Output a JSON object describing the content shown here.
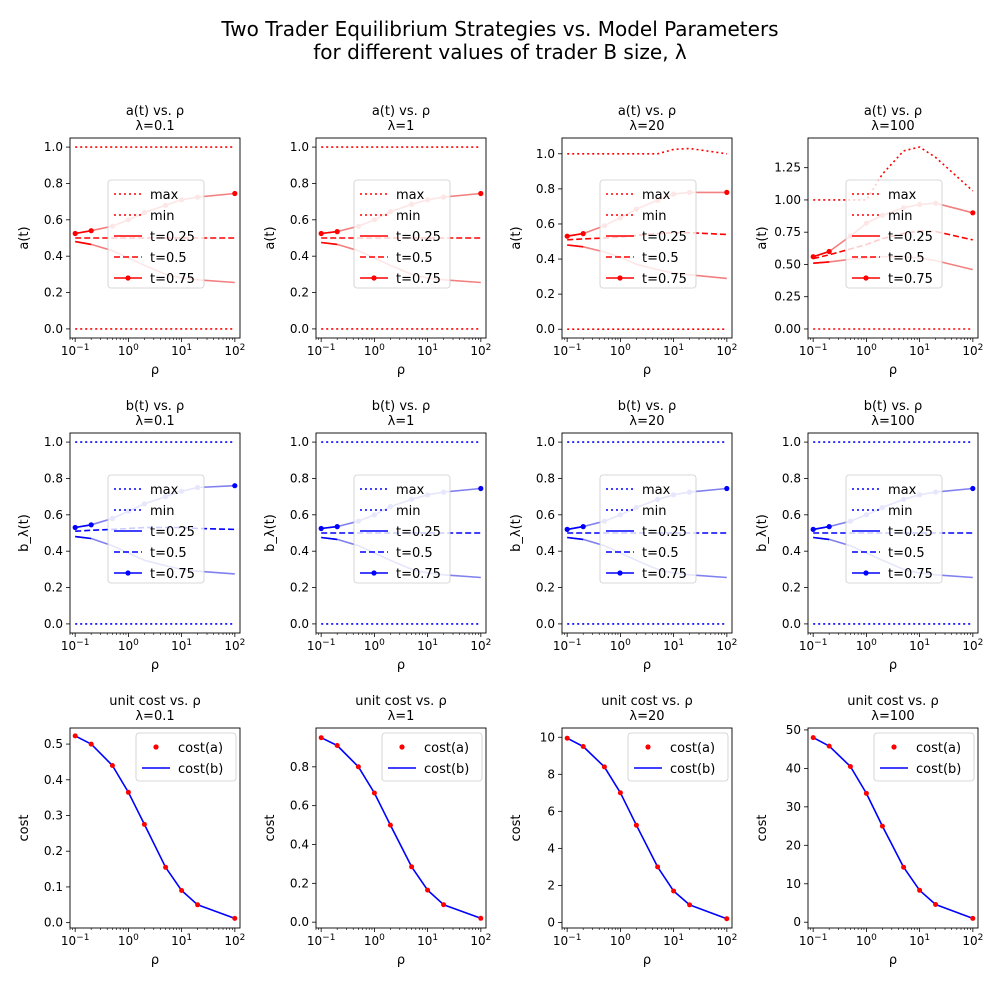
{
  "figure": {
    "title_line1": "Two Trader Equilibrium Strategies vs. Model Parameters",
    "title_line2": "for different values of trader B size, λ"
  },
  "chart_data": [
    {
      "type": "line",
      "row": "a",
      "title_line1": "a(t) vs. ρ",
      "title_line2": "λ=0.1",
      "xlabel": "ρ",
      "ylabel": "a(t)",
      "xscale": "log",
      "xlim": [
        0.08,
        125
      ],
      "ylim": [
        -0.05,
        1.05
      ],
      "yticks": [
        0.0,
        0.2,
        0.4,
        0.6,
        0.8,
        1.0
      ],
      "color": "#ff0000",
      "light_color": "#f28080",
      "legend": [
        "max",
        "min",
        "t=0.25",
        "t=0.5",
        "t=0.75"
      ],
      "x": [
        0.1,
        0.2,
        0.5,
        1,
        2,
        5,
        10,
        20,
        100
      ],
      "max": [
        1,
        1,
        1,
        1,
        1,
        1,
        1,
        1,
        1
      ],
      "min": [
        0,
        0,
        0,
        0,
        0,
        0,
        0,
        0,
        0
      ],
      "t025": [
        0.48,
        0.465,
        0.43,
        0.39,
        0.35,
        0.3,
        0.28,
        0.27,
        0.255
      ],
      "t05": [
        0.5,
        0.5,
        0.5,
        0.5,
        0.5,
        0.5,
        0.5,
        0.5,
        0.5
      ],
      "t075": [
        0.525,
        0.54,
        0.565,
        0.6,
        0.64,
        0.68,
        0.71,
        0.725,
        0.745
      ]
    },
    {
      "type": "line",
      "row": "a",
      "title_line1": "a(t) vs. ρ",
      "title_line2": "λ=1",
      "xlabel": "ρ",
      "ylabel": "a(t)",
      "xscale": "log",
      "xlim": [
        0.08,
        125
      ],
      "ylim": [
        -0.05,
        1.05
      ],
      "yticks": [
        0.0,
        0.2,
        0.4,
        0.6,
        0.8,
        1.0
      ],
      "color": "#ff0000",
      "light_color": "#f28080",
      "legend": [
        "max",
        "min",
        "t=0.25",
        "t=0.5",
        "t=0.75"
      ],
      "x": [
        0.1,
        0.2,
        0.5,
        1,
        2,
        5,
        10,
        20,
        100
      ],
      "max": [
        1,
        1,
        1,
        1,
        1,
        1,
        1,
        1,
        1
      ],
      "min": [
        0,
        0,
        0,
        0,
        0,
        0,
        0,
        0,
        0
      ],
      "t025": [
        0.475,
        0.465,
        0.43,
        0.39,
        0.35,
        0.3,
        0.28,
        0.27,
        0.255
      ],
      "t05": [
        0.5,
        0.5,
        0.5,
        0.5,
        0.5,
        0.5,
        0.5,
        0.5,
        0.5
      ],
      "t075": [
        0.525,
        0.535,
        0.565,
        0.6,
        0.645,
        0.685,
        0.71,
        0.725,
        0.745
      ]
    },
    {
      "type": "line",
      "row": "a",
      "title_line1": "a(t) vs. ρ",
      "title_line2": "λ=20",
      "xlabel": "ρ",
      "ylabel": "a(t)",
      "xscale": "log",
      "xlim": [
        0.08,
        125
      ],
      "ylim": [
        -0.05,
        1.09
      ],
      "yticks": [
        0.0,
        0.2,
        0.4,
        0.6,
        0.8,
        1.0
      ],
      "color": "#ff0000",
      "light_color": "#f28080",
      "legend": [
        "max",
        "min",
        "t=0.25",
        "t=0.5",
        "t=0.75"
      ],
      "x": [
        0.1,
        0.2,
        0.5,
        1,
        2,
        5,
        10,
        20,
        100
      ],
      "max": [
        1,
        1,
        1,
        1,
        1,
        1,
        1.025,
        1.03,
        1
      ],
      "min": [
        0,
        0,
        0,
        0,
        0,
        0,
        0,
        0,
        0
      ],
      "t025": [
        0.48,
        0.47,
        0.44,
        0.41,
        0.37,
        0.34,
        0.32,
        0.31,
        0.29
      ],
      "t05": [
        0.51,
        0.515,
        0.52,
        0.525,
        0.535,
        0.545,
        0.55,
        0.55,
        0.54
      ],
      "t075": [
        0.53,
        0.545,
        0.59,
        0.635,
        0.685,
        0.735,
        0.77,
        0.78,
        0.78
      ]
    },
    {
      "type": "line",
      "row": "a",
      "title_line1": "a(t) vs. ρ",
      "title_line2": "λ=100",
      "xlabel": "ρ",
      "ylabel": "a(t)",
      "xscale": "log",
      "xlim": [
        0.08,
        125
      ],
      "ylim": [
        -0.07,
        1.48
      ],
      "yticks": [
        0.0,
        0.25,
        0.5,
        0.75,
        1.0,
        1.25
      ],
      "color": "#ff0000",
      "light_color": "#f28080",
      "legend": [
        "max",
        "min",
        "t=0.25",
        "t=0.5",
        "t=0.75"
      ],
      "x": [
        0.1,
        0.2,
        0.5,
        1,
        2,
        5,
        10,
        20,
        100
      ],
      "max": [
        1,
        1,
        1,
        1,
        1.2,
        1.38,
        1.41,
        1.33,
        1.07
      ],
      "min": [
        0,
        0,
        0,
        0,
        0,
        0,
        0,
        0,
        0
      ],
      "t025": [
        0.51,
        0.52,
        0.54,
        0.55,
        0.56,
        0.56,
        0.55,
        0.53,
        0.46
      ],
      "t05": [
        0.545,
        0.575,
        0.62,
        0.655,
        0.7,
        0.74,
        0.76,
        0.755,
        0.69
      ],
      "t075": [
        0.56,
        0.6,
        0.72,
        0.82,
        0.88,
        0.94,
        0.965,
        0.975,
        0.9
      ]
    },
    {
      "type": "line",
      "row": "b",
      "title_line1": "b(t) vs. ρ",
      "title_line2": "λ=0.1",
      "xlabel": "ρ",
      "ylabel": "b_λ(t)",
      "xscale": "log",
      "xlim": [
        0.08,
        125
      ],
      "ylim": [
        -0.05,
        1.05
      ],
      "yticks": [
        0.0,
        0.2,
        0.4,
        0.6,
        0.8,
        1.0
      ],
      "color": "#0000ff",
      "light_color": "#8080f0",
      "legend": [
        "max",
        "min",
        "t=0.25",
        "t=0.5",
        "t=0.75"
      ],
      "x": [
        0.1,
        0.2,
        0.5,
        1,
        2,
        5,
        10,
        20,
        100
      ],
      "max": [
        1,
        1,
        1,
        1,
        1,
        1,
        1,
        1,
        1
      ],
      "min": [
        0,
        0,
        0,
        0,
        0,
        0,
        0,
        0,
        0
      ],
      "t025": [
        0.48,
        0.47,
        0.43,
        0.39,
        0.35,
        0.32,
        0.3,
        0.29,
        0.275
      ],
      "t05": [
        0.51,
        0.515,
        0.52,
        0.525,
        0.53,
        0.53,
        0.53,
        0.525,
        0.52
      ],
      "t075": [
        0.53,
        0.545,
        0.58,
        0.62,
        0.66,
        0.7,
        0.73,
        0.75,
        0.76
      ]
    },
    {
      "type": "line",
      "row": "b",
      "title_line1": "b(t) vs. ρ",
      "title_line2": "λ=1",
      "xlabel": "ρ",
      "ylabel": "b_λ(t)",
      "xscale": "log",
      "xlim": [
        0.08,
        125
      ],
      "ylim": [
        -0.05,
        1.05
      ],
      "yticks": [
        0.0,
        0.2,
        0.4,
        0.6,
        0.8,
        1.0
      ],
      "color": "#0000ff",
      "light_color": "#8080f0",
      "legend": [
        "max",
        "min",
        "t=0.25",
        "t=0.5",
        "t=0.75"
      ],
      "x": [
        0.1,
        0.2,
        0.5,
        1,
        2,
        5,
        10,
        20,
        100
      ],
      "max": [
        1,
        1,
        1,
        1,
        1,
        1,
        1,
        1,
        1
      ],
      "min": [
        0,
        0,
        0,
        0,
        0,
        0,
        0,
        0,
        0
      ],
      "t025": [
        0.475,
        0.465,
        0.43,
        0.39,
        0.35,
        0.3,
        0.28,
        0.27,
        0.255
      ],
      "t05": [
        0.5,
        0.5,
        0.5,
        0.5,
        0.5,
        0.5,
        0.5,
        0.5,
        0.5
      ],
      "t075": [
        0.525,
        0.535,
        0.565,
        0.6,
        0.645,
        0.685,
        0.71,
        0.725,
        0.745
      ]
    },
    {
      "type": "line",
      "row": "b",
      "title_line1": "b(t) vs. ρ",
      "title_line2": "λ=20",
      "xlabel": "ρ",
      "ylabel": "b_λ(t)",
      "xscale": "log",
      "xlim": [
        0.08,
        125
      ],
      "ylim": [
        -0.05,
        1.05
      ],
      "yticks": [
        0.0,
        0.2,
        0.4,
        0.6,
        0.8,
        1.0
      ],
      "color": "#0000ff",
      "light_color": "#8080f0",
      "legend": [
        "max",
        "min",
        "t=0.25",
        "t=0.5",
        "t=0.75"
      ],
      "x": [
        0.1,
        0.2,
        0.5,
        1,
        2,
        5,
        10,
        20,
        100
      ],
      "max": [
        1,
        1,
        1,
        1,
        1,
        1,
        1,
        1,
        1
      ],
      "min": [
        0,
        0,
        0,
        0,
        0,
        0,
        0,
        0,
        0
      ],
      "t025": [
        0.475,
        0.465,
        0.43,
        0.39,
        0.35,
        0.3,
        0.28,
        0.27,
        0.255
      ],
      "t05": [
        0.5,
        0.5,
        0.5,
        0.5,
        0.5,
        0.5,
        0.5,
        0.5,
        0.5
      ],
      "t075": [
        0.52,
        0.535,
        0.565,
        0.6,
        0.64,
        0.685,
        0.71,
        0.725,
        0.745
      ]
    },
    {
      "type": "line",
      "row": "b",
      "title_line1": "b(t) vs. ρ",
      "title_line2": "λ=100",
      "xlabel": "ρ",
      "ylabel": "b_λ(t)",
      "xscale": "log",
      "xlim": [
        0.08,
        125
      ],
      "ylim": [
        -0.05,
        1.05
      ],
      "yticks": [
        0.0,
        0.2,
        0.4,
        0.6,
        0.8,
        1.0
      ],
      "color": "#0000ff",
      "light_color": "#8080f0",
      "legend": [
        "max",
        "min",
        "t=0.25",
        "t=0.5",
        "t=0.75"
      ],
      "x": [
        0.1,
        0.2,
        0.5,
        1,
        2,
        5,
        10,
        20,
        100
      ],
      "max": [
        1,
        1,
        1,
        1,
        1,
        1,
        1,
        1,
        1
      ],
      "min": [
        0,
        0,
        0,
        0,
        0,
        0,
        0,
        0,
        0
      ],
      "t025": [
        0.475,
        0.465,
        0.43,
        0.39,
        0.35,
        0.3,
        0.28,
        0.27,
        0.255
      ],
      "t05": [
        0.5,
        0.5,
        0.5,
        0.5,
        0.5,
        0.5,
        0.5,
        0.5,
        0.5
      ],
      "t075": [
        0.52,
        0.535,
        0.565,
        0.6,
        0.64,
        0.685,
        0.71,
        0.725,
        0.745
      ]
    },
    {
      "type": "scatter+line",
      "row": "cost",
      "title_line1": "unit cost vs. ρ",
      "title_line2": "λ=0.1",
      "xlabel": "ρ",
      "ylabel": "cost",
      "xscale": "log",
      "xlim": [
        0.08,
        125
      ],
      "ylim": [
        -0.015,
        0.545
      ],
      "yticks": [
        0.0,
        0.1,
        0.2,
        0.3,
        0.4,
        0.5
      ],
      "legend": [
        "cost(a)",
        "cost(b)"
      ],
      "x": [
        0.1,
        0.2,
        0.5,
        1,
        2,
        5,
        10,
        20,
        100
      ],
      "cost_a": [
        0.523,
        0.5,
        0.44,
        0.365,
        0.275,
        0.155,
        0.09,
        0.05,
        0.012
      ],
      "cost_b": [
        0.523,
        0.5,
        0.44,
        0.365,
        0.275,
        0.155,
        0.09,
        0.05,
        0.012
      ]
    },
    {
      "type": "scatter+line",
      "row": "cost",
      "title_line1": "unit cost vs. ρ",
      "title_line2": "λ=1",
      "xlabel": "ρ",
      "ylabel": "cost",
      "xscale": "log",
      "xlim": [
        0.08,
        125
      ],
      "ylim": [
        -0.03,
        1.0
      ],
      "yticks": [
        0.0,
        0.2,
        0.4,
        0.6,
        0.8
      ],
      "legend": [
        "cost(a)",
        "cost(b)"
      ],
      "x": [
        0.1,
        0.2,
        0.5,
        1,
        2,
        5,
        10,
        20,
        100
      ],
      "cost_a": [
        0.95,
        0.91,
        0.8,
        0.665,
        0.5,
        0.285,
        0.165,
        0.09,
        0.02
      ],
      "cost_b": [
        0.95,
        0.91,
        0.8,
        0.665,
        0.5,
        0.285,
        0.165,
        0.09,
        0.02
      ]
    },
    {
      "type": "scatter+line",
      "row": "cost",
      "title_line1": "unit cost vs. ρ",
      "title_line2": "λ=20",
      "xlabel": "ρ",
      "ylabel": "cost",
      "xscale": "log",
      "xlim": [
        0.08,
        125
      ],
      "ylim": [
        -0.3,
        10.5
      ],
      "yticks": [
        0,
        2,
        4,
        6,
        8,
        10
      ],
      "legend": [
        "cost(a)",
        "cost(b)"
      ],
      "x": [
        0.1,
        0.2,
        0.5,
        1,
        2,
        5,
        10,
        20,
        100
      ],
      "cost_a": [
        9.95,
        9.5,
        8.4,
        7.0,
        5.25,
        3.0,
        1.7,
        0.95,
        0.2
      ],
      "cost_b": [
        9.95,
        9.5,
        8.4,
        7.0,
        5.25,
        3.0,
        1.7,
        0.95,
        0.2
      ]
    },
    {
      "type": "scatter+line",
      "row": "cost",
      "title_line1": "unit cost vs. ρ",
      "title_line2": "λ=100",
      "xlabel": "ρ",
      "ylabel": "cost",
      "xscale": "log",
      "xlim": [
        0.08,
        125
      ],
      "ylim": [
        -1.5,
        50.5
      ],
      "yticks": [
        0,
        10,
        20,
        30,
        40,
        50
      ],
      "legend": [
        "cost(a)",
        "cost(b)"
      ],
      "x": [
        0.1,
        0.2,
        0.5,
        1,
        2,
        5,
        10,
        20,
        100
      ],
      "cost_a": [
        48,
        45.8,
        40.5,
        33.5,
        25,
        14.3,
        8.3,
        4.6,
        1.0
      ],
      "cost_b": [
        48,
        45.8,
        40.5,
        33.5,
        25,
        14.3,
        8.3,
        4.6,
        1.0
      ]
    }
  ]
}
